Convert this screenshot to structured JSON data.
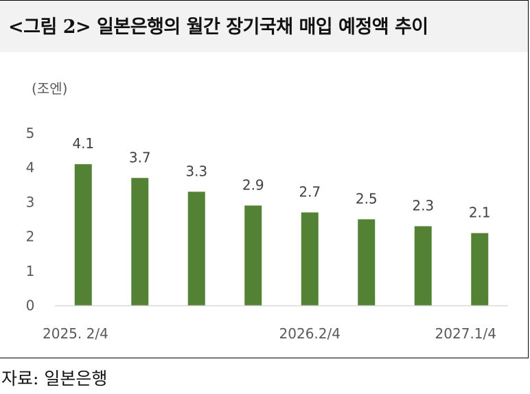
{
  "title": "<그림 2> 일본은행의 월간 장기국채 매입 예정액 추이",
  "source": "자료: 일본은행",
  "chart_data": {
    "type": "bar",
    "unit_label": "(조엔)",
    "categories": [
      "2025. 2/4",
      "",
      "",
      "",
      "2026.2/4",
      "",
      "",
      "2027.1/4"
    ],
    "x_tick_labels": [
      "2025. 2/4",
      "2026.2/4",
      "2027.1/4"
    ],
    "values": [
      4.1,
      3.7,
      3.3,
      2.9,
      2.7,
      2.5,
      2.3,
      2.1
    ],
    "data_labels": [
      "4.1",
      "3.7",
      "3.3",
      "2.9",
      "2.7",
      "2.5",
      "2.3",
      "2.1"
    ],
    "y_ticks": [
      "0",
      "1",
      "2",
      "3",
      "4",
      "5"
    ],
    "ylim": [
      0,
      5
    ],
    "bar_color": "#548235",
    "grid": false,
    "legend": "none"
  }
}
